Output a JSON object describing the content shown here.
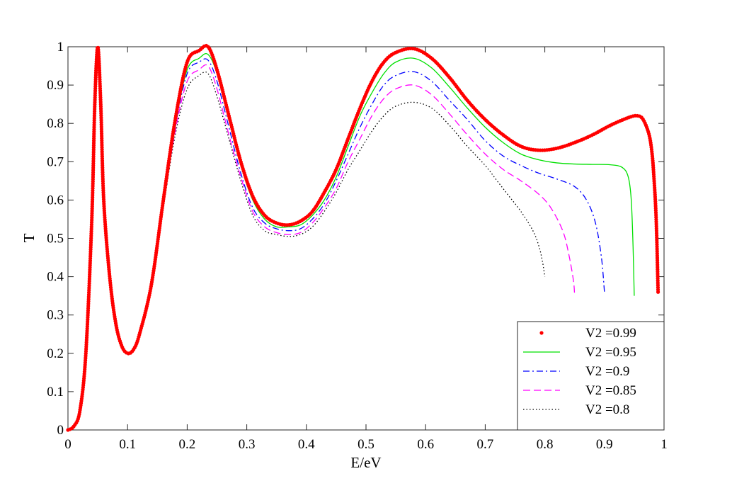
{
  "chart_data": {
    "type": "line",
    "title": "",
    "xlabel": "E/eV",
    "ylabel": "T",
    "xlim": [
      0,
      1
    ],
    "ylim": [
      0,
      1
    ],
    "xticks": [
      0,
      0.1,
      0.2,
      0.3,
      0.4,
      0.5,
      0.6,
      0.7,
      0.8,
      0.9,
      1
    ],
    "xtick_labels": [
      "0",
      "0.1",
      "0.2",
      "0.3",
      "0.4",
      "0.5",
      "0.6",
      "0.7",
      "0.8",
      "0.9",
      "1"
    ],
    "yticks": [
      0,
      0.1,
      0.2,
      0.3,
      0.4,
      0.5,
      0.6,
      0.7,
      0.8,
      0.9,
      1
    ],
    "ytick_labels": [
      "0",
      "0.1",
      "0.2",
      "0.3",
      "0.4",
      "0.5",
      "0.6",
      "0.7",
      "0.8",
      "0.9",
      "1"
    ],
    "grid": false,
    "legend_position": "bottom-right",
    "series": [
      {
        "name": "V2 =0.99",
        "style": "dots",
        "color": "#ff0000",
        "x": [
          0,
          0.01,
          0.02,
          0.03,
          0.04,
          0.045,
          0.05,
          0.055,
          0.06,
          0.07,
          0.08,
          0.09,
          0.1,
          0.11,
          0.12,
          0.14,
          0.16,
          0.18,
          0.2,
          0.22,
          0.235,
          0.25,
          0.27,
          0.29,
          0.31,
          0.33,
          0.35,
          0.37,
          0.39,
          0.41,
          0.43,
          0.45,
          0.47,
          0.49,
          0.51,
          0.53,
          0.55,
          0.58,
          0.61,
          0.64,
          0.67,
          0.7,
          0.73,
          0.76,
          0.79,
          0.82,
          0.85,
          0.88,
          0.91,
          0.94,
          0.955,
          0.965,
          0.975,
          0.98,
          0.983,
          0.986,
          0.988,
          0.99
        ],
        "y": [
          0,
          0.01,
          0.05,
          0.2,
          0.55,
          0.85,
          1.0,
          0.85,
          0.6,
          0.4,
          0.28,
          0.22,
          0.2,
          0.21,
          0.25,
          0.38,
          0.6,
          0.81,
          0.96,
          0.99,
          1.0,
          0.94,
          0.82,
          0.7,
          0.61,
          0.56,
          0.54,
          0.535,
          0.545,
          0.57,
          0.62,
          0.68,
          0.76,
          0.84,
          0.91,
          0.96,
          0.985,
          0.995,
          0.97,
          0.92,
          0.86,
          0.81,
          0.77,
          0.74,
          0.73,
          0.735,
          0.75,
          0.77,
          0.795,
          0.815,
          0.82,
          0.81,
          0.77,
          0.72,
          0.66,
          0.58,
          0.49,
          0.36
        ]
      },
      {
        "name": "V2 =0.95",
        "style": "solid",
        "color": "#00e000",
        "x": [
          0,
          0.01,
          0.02,
          0.03,
          0.04,
          0.045,
          0.05,
          0.055,
          0.06,
          0.07,
          0.08,
          0.09,
          0.1,
          0.11,
          0.12,
          0.14,
          0.16,
          0.18,
          0.2,
          0.22,
          0.235,
          0.25,
          0.27,
          0.29,
          0.31,
          0.33,
          0.35,
          0.37,
          0.39,
          0.41,
          0.43,
          0.45,
          0.47,
          0.49,
          0.51,
          0.53,
          0.55,
          0.58,
          0.61,
          0.64,
          0.67,
          0.7,
          0.73,
          0.76,
          0.79,
          0.82,
          0.85,
          0.88,
          0.91,
          0.93,
          0.94,
          0.945,
          0.948,
          0.95
        ],
        "y": [
          0,
          0.01,
          0.05,
          0.2,
          0.55,
          0.85,
          0.99,
          0.85,
          0.6,
          0.4,
          0.28,
          0.22,
          0.2,
          0.21,
          0.25,
          0.38,
          0.6,
          0.8,
          0.94,
          0.97,
          0.98,
          0.93,
          0.81,
          0.69,
          0.6,
          0.55,
          0.53,
          0.53,
          0.535,
          0.56,
          0.6,
          0.66,
          0.74,
          0.82,
          0.88,
          0.93,
          0.96,
          0.97,
          0.945,
          0.895,
          0.84,
          0.79,
          0.75,
          0.72,
          0.705,
          0.697,
          0.694,
          0.693,
          0.692,
          0.685,
          0.66,
          0.6,
          0.48,
          0.35
        ]
      },
      {
        "name": "V2 =0.9",
        "style": "dashdot",
        "color": "#0000ff",
        "x": [
          0,
          0.01,
          0.02,
          0.03,
          0.04,
          0.045,
          0.05,
          0.055,
          0.06,
          0.07,
          0.08,
          0.09,
          0.1,
          0.11,
          0.12,
          0.14,
          0.16,
          0.18,
          0.2,
          0.22,
          0.235,
          0.25,
          0.27,
          0.29,
          0.31,
          0.33,
          0.35,
          0.37,
          0.39,
          0.41,
          0.43,
          0.45,
          0.47,
          0.49,
          0.51,
          0.53,
          0.55,
          0.58,
          0.61,
          0.64,
          0.67,
          0.7,
          0.73,
          0.76,
          0.79,
          0.82,
          0.85,
          0.87,
          0.885,
          0.895,
          0.9
        ],
        "y": [
          0,
          0.01,
          0.05,
          0.2,
          0.55,
          0.85,
          0.98,
          0.85,
          0.6,
          0.4,
          0.28,
          0.22,
          0.2,
          0.21,
          0.25,
          0.38,
          0.59,
          0.79,
          0.93,
          0.96,
          0.965,
          0.91,
          0.79,
          0.67,
          0.58,
          0.54,
          0.525,
          0.52,
          0.525,
          0.55,
          0.59,
          0.65,
          0.72,
          0.79,
          0.85,
          0.9,
          0.925,
          0.935,
          0.91,
          0.86,
          0.81,
          0.755,
          0.715,
          0.69,
          0.67,
          0.655,
          0.635,
          0.6,
          0.54,
          0.45,
          0.36
        ]
      },
      {
        "name": "V2 =0.85",
        "style": "dashed",
        "color": "#ff00ff",
        "x": [
          0,
          0.01,
          0.02,
          0.03,
          0.04,
          0.045,
          0.05,
          0.055,
          0.06,
          0.07,
          0.08,
          0.09,
          0.1,
          0.11,
          0.12,
          0.14,
          0.16,
          0.18,
          0.2,
          0.22,
          0.235,
          0.25,
          0.27,
          0.29,
          0.31,
          0.33,
          0.35,
          0.37,
          0.39,
          0.41,
          0.43,
          0.45,
          0.47,
          0.49,
          0.51,
          0.53,
          0.55,
          0.58,
          0.61,
          0.64,
          0.67,
          0.7,
          0.73,
          0.76,
          0.79,
          0.81,
          0.83,
          0.84,
          0.848,
          0.85
        ],
        "y": [
          0,
          0.01,
          0.05,
          0.2,
          0.55,
          0.85,
          0.97,
          0.85,
          0.6,
          0.4,
          0.28,
          0.22,
          0.2,
          0.21,
          0.25,
          0.38,
          0.59,
          0.78,
          0.91,
          0.94,
          0.95,
          0.89,
          0.77,
          0.66,
          0.57,
          0.53,
          0.515,
          0.51,
          0.515,
          0.54,
          0.58,
          0.63,
          0.7,
          0.76,
          0.82,
          0.865,
          0.89,
          0.9,
          0.875,
          0.825,
          0.77,
          0.72,
          0.68,
          0.65,
          0.615,
          0.58,
          0.52,
          0.46,
          0.39,
          0.35
        ]
      },
      {
        "name": "V2 =0.8",
        "style": "dotted",
        "color": "#000000",
        "x": [
          0,
          0.01,
          0.02,
          0.03,
          0.04,
          0.045,
          0.05,
          0.055,
          0.06,
          0.07,
          0.08,
          0.09,
          0.1,
          0.11,
          0.12,
          0.14,
          0.16,
          0.18,
          0.2,
          0.22,
          0.235,
          0.25,
          0.27,
          0.29,
          0.31,
          0.33,
          0.35,
          0.37,
          0.39,
          0.41,
          0.43,
          0.45,
          0.47,
          0.49,
          0.51,
          0.53,
          0.55,
          0.58,
          0.61,
          0.64,
          0.67,
          0.7,
          0.72,
          0.74,
          0.76,
          0.78,
          0.79,
          0.796,
          0.8
        ],
        "y": [
          0,
          0.01,
          0.05,
          0.2,
          0.55,
          0.85,
          0.96,
          0.85,
          0.6,
          0.4,
          0.28,
          0.22,
          0.2,
          0.21,
          0.25,
          0.37,
          0.58,
          0.77,
          0.89,
          0.925,
          0.93,
          0.87,
          0.76,
          0.65,
          0.56,
          0.52,
          0.51,
          0.505,
          0.51,
          0.53,
          0.57,
          0.62,
          0.68,
          0.73,
          0.78,
          0.82,
          0.845,
          0.855,
          0.84,
          0.795,
          0.74,
          0.69,
          0.65,
          0.61,
          0.57,
          0.52,
          0.48,
          0.44,
          0.4
        ]
      }
    ]
  }
}
